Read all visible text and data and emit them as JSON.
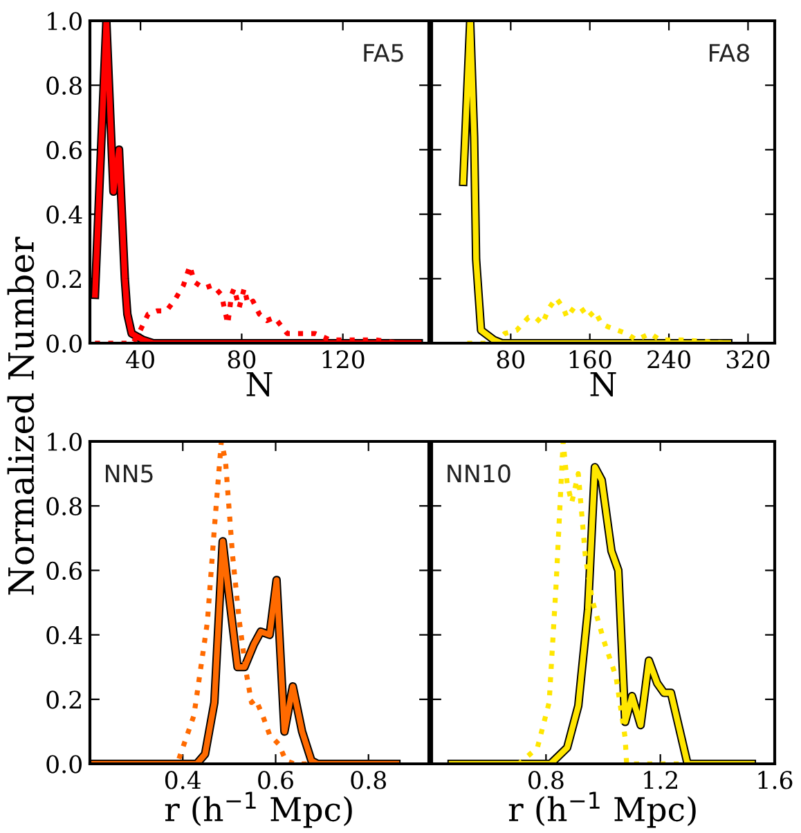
{
  "chart_data": [
    {
      "type": "line",
      "xlabel": "N",
      "ylabel": "Normalized Number",
      "annotations": [
        "FA5"
      ],
      "xlim": [
        20,
        154
      ],
      "xticks": [
        40,
        80,
        120
      ],
      "ylim": [
        0,
        1
      ],
      "yticks": [
        {
          "value": 0,
          "label": "0.0"
        },
        {
          "value": 0.2,
          "label": "0.2"
        },
        {
          "value": 0.4,
          "label": "0.4"
        },
        {
          "value": 0.6,
          "label": "0.6"
        },
        {
          "value": 0.8,
          "label": "0.8"
        },
        {
          "value": 1,
          "label": "1.0"
        }
      ],
      "grid": false,
      "legend": false,
      "series": [
        {
          "color": "#ff0000",
          "line_style": "solid",
          "x": [
            22,
            26.5,
            29.3,
            31.5,
            33.8,
            34.8,
            36.5,
            41,
            45,
            60,
            80,
            100,
            120,
            140,
            150
          ],
          "values": [
            0.15,
            1.0,
            0.47,
            0.6,
            0.2,
            0.09,
            0.03,
            0.01,
            0,
            0,
            0,
            0,
            0,
            0,
            0
          ]
        },
        {
          "color": "#ff0000",
          "line_style": "dotted",
          "x": [
            22,
            37,
            39.3,
            43,
            46.5,
            50.3,
            54,
            57,
            59.5,
            61.3,
            65,
            68.5,
            72,
            74.5,
            76,
            77,
            79,
            81,
            82.5,
            84.5,
            87,
            90,
            93,
            98,
            103.7,
            109,
            115,
            120,
            133,
            142
          ],
          "values": [
            0,
            0,
            0.03,
            0.09,
            0.1,
            0.1,
            0.14,
            0.18,
            0.24,
            0.19,
            0.17,
            0.18,
            0.15,
            0.06,
            0.15,
            0.17,
            0.11,
            0.17,
            0.12,
            0.13,
            0.09,
            0.07,
            0.08,
            0.03,
            0.03,
            0.03,
            0.01,
            0.01,
            0.01,
            0
          ]
        }
      ]
    },
    {
      "type": "line",
      "xlabel": "N",
      "annotations": [
        "FA8"
      ],
      "xlim": [
        0,
        347
      ],
      "xticks": [
        80,
        160,
        240,
        320
      ],
      "ylim": [
        0,
        1
      ],
      "yticks": [
        0,
        0.2,
        0.4,
        0.6,
        0.8,
        1
      ],
      "tick_labels": "x",
      "grid": false,
      "legend": false,
      "series": [
        {
          "color": "#ffe600",
          "line_style": "solid",
          "x": [
            32,
            39,
            43,
            45,
            50,
            63,
            71,
            100,
            150,
            200,
            250,
            300
          ],
          "values": [
            0.5,
            1.0,
            0.64,
            0.26,
            0.04,
            0.01,
            0,
            0,
            0,
            0,
            0,
            0
          ]
        },
        {
          "color": "#ffe600",
          "line_style": "dotted",
          "x": [
            36,
            63,
            74,
            86,
            98,
            105,
            112,
            119,
            126,
            133,
            137,
            144,
            151,
            158,
            165,
            172,
            179,
            188,
            197,
            207,
            221,
            231,
            253,
            300
          ],
          "values": [
            0,
            0,
            0.03,
            0.04,
            0.08,
            0.08,
            0.06,
            0.11,
            0.14,
            0.11,
            0.08,
            0.11,
            0.11,
            0.08,
            0.1,
            0.06,
            0.05,
            0.04,
            0.03,
            0.01,
            0.03,
            0.01,
            0.01,
            0
          ]
        }
      ]
    },
    {
      "type": "line",
      "xlabel": "r (h$^{−1}$ Mpc)",
      "annotations": [
        "NN5"
      ],
      "xlim": [
        0.2,
        0.93
      ],
      "xticks": [
        0.4,
        0.6,
        0.8
      ],
      "ylim": [
        0,
        1
      ],
      "yticks": [
        {
          "value": 0,
          "label": "0.0"
        },
        {
          "value": 0.2,
          "label": "0.2"
        },
        {
          "value": 0.4,
          "label": "0.4"
        },
        {
          "value": 0.6,
          "label": "0.6"
        },
        {
          "value": 0.8,
          "label": "0.8"
        },
        {
          "value": 1,
          "label": "1.0"
        }
      ],
      "grid": false,
      "legend": false,
      "series": [
        {
          "color": "#ff6a00",
          "line_style": "solid",
          "x": [
            0.2,
            0.43,
            0.448,
            0.468,
            0.486,
            0.498,
            0.518,
            0.533,
            0.553,
            0.568,
            0.587,
            0.602,
            0.619,
            0.637,
            0.657,
            0.677,
            0.69,
            0.86
          ],
          "values": [
            0,
            0,
            0.03,
            0.19,
            0.69,
            0.54,
            0.3,
            0.3,
            0.37,
            0.41,
            0.4,
            0.57,
            0.1,
            0.24,
            0.1,
            0.01,
            0,
            0
          ]
        },
        {
          "color": "#ff6a00",
          "line_style": "dotted",
          "x": [
            0.2,
            0.388,
            0.424,
            0.453,
            0.468,
            0.483,
            0.492,
            0.507,
            0.522,
            0.537,
            0.548,
            0.557,
            0.572,
            0.587,
            0.607,
            0.622,
            0.64,
            0.86
          ],
          "values": [
            0,
            0,
            0.15,
            0.44,
            0.73,
            1.0,
            0.94,
            0.65,
            0.44,
            0.28,
            0.19,
            0.2,
            0.15,
            0.09,
            0.06,
            0.01,
            0,
            0
          ]
        }
      ]
    },
    {
      "type": "line",
      "xlabel": "r (h$^{−1}$ Mpc)",
      "annotations": [
        "NN10"
      ],
      "xlim": [
        0.4,
        1.6
      ],
      "xticks": [
        0.8,
        1.2,
        1.6
      ],
      "ylim": [
        0,
        1
      ],
      "yticks": [
        0,
        0.2,
        0.4,
        0.6,
        0.8,
        1
      ],
      "tick_labels": "x",
      "grid": false,
      "legend": false,
      "series": [
        {
          "color": "#ffe600",
          "line_style": "solid",
          "x": [
            0.47,
            0.816,
            0.874,
            0.913,
            0.947,
            0.971,
            0.995,
            1.029,
            1.053,
            1.077,
            1.101,
            1.131,
            1.16,
            1.189,
            1.213,
            1.237,
            1.295,
            1.52
          ],
          "values": [
            0,
            0,
            0.05,
            0.18,
            0.48,
            0.92,
            0.88,
            0.66,
            0.6,
            0.13,
            0.21,
            0.12,
            0.32,
            0.25,
            0.22,
            0.22,
            0,
            0
          ]
        },
        {
          "color": "#ffe600",
          "line_style": "dotted",
          "x": [
            0.47,
            0.705,
            0.77,
            0.811,
            0.835,
            0.86,
            0.874,
            0.89,
            0.913,
            0.937,
            0.961,
            1.003,
            1.045,
            1.077,
            1.082,
            1.52
          ],
          "values": [
            0,
            0,
            0.05,
            0.19,
            0.55,
            1.0,
            0.87,
            0.81,
            0.9,
            0.65,
            0.51,
            0.38,
            0.27,
            0.08,
            0,
            0
          ]
        }
      ]
    }
  ]
}
